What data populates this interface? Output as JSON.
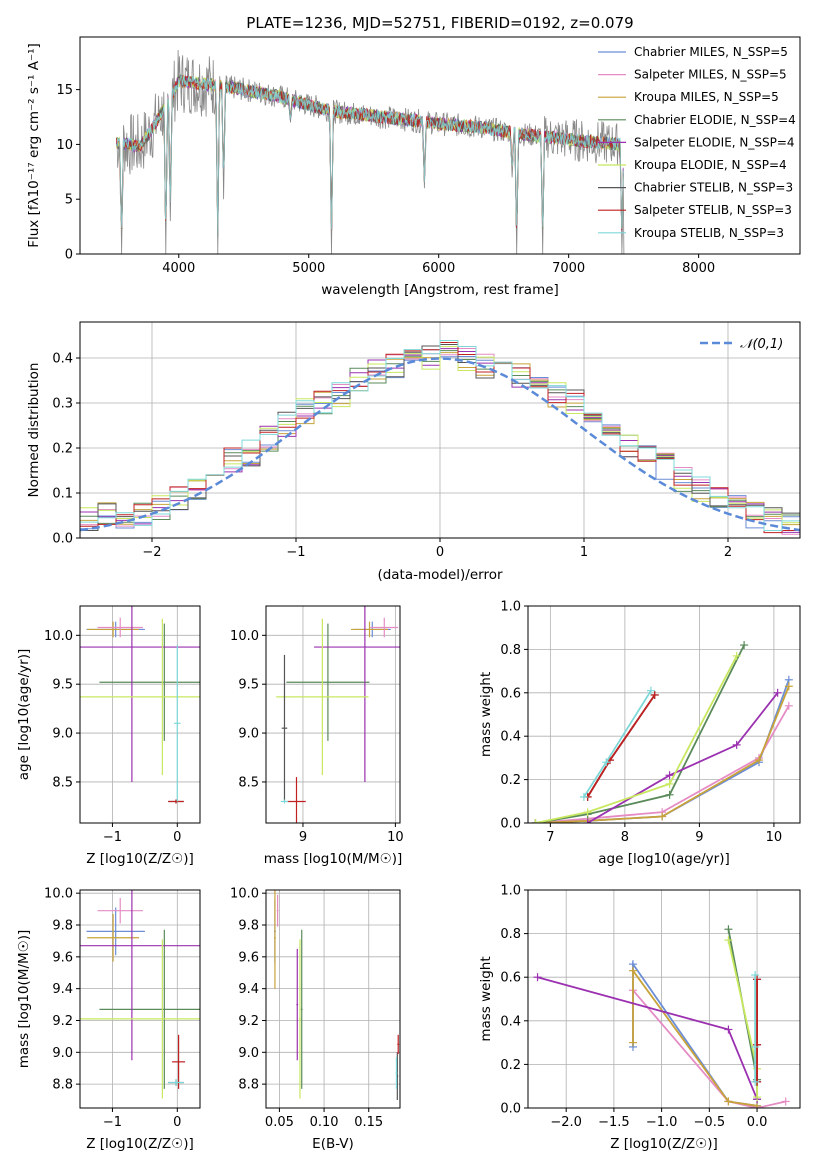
{
  "chart_data": [
    {
      "type": "line",
      "title": "PLATE=1236, MJD=52751, FIBERID=0192, z=0.079",
      "xlabel": "wavelength [Angstrom, rest frame]",
      "ylabel": "Flux [fλ10⁻¹⁷ erg cm⁻² s⁻¹ A⁻¹]",
      "xlim": [
        3240,
        8780
      ],
      "ylim": [
        0,
        19.8
      ],
      "xticks": [
        4000,
        5000,
        6000,
        7000,
        8000
      ],
      "yticks": [
        0,
        5,
        10,
        15
      ],
      "grid": false,
      "legend_position": "top-right",
      "series": [
        {
          "name": "Chabrier MILES, N_SSP=5",
          "color": "#6b8ed6"
        },
        {
          "name": "Salpeter MILES, N_SSP=5",
          "color": "#e58cc5"
        },
        {
          "name": "Kroupa MILES, N_SSP=5",
          "color": "#c8a23a"
        },
        {
          "name": "Chabrier ELODIE, N_SSP=4",
          "color": "#5a8a5a"
        },
        {
          "name": "Salpeter ELODIE, N_SSP=4",
          "color": "#9b30b0"
        },
        {
          "name": "Kroupa ELODIE, N_SSP=4",
          "color": "#c8e860"
        },
        {
          "name": "Chabrier STELIB, N_SSP=3",
          "color": "#555555"
        },
        {
          "name": "Salpeter STELIB, N_SSP=3",
          "color": "#c02020"
        },
        {
          "name": "Kroupa STELIB, N_SSP=3",
          "color": "#7fd8d8"
        }
      ],
      "data_color": "#888888",
      "continuum_points": [
        [
          3520,
          10.2
        ],
        [
          3700,
          9.8
        ],
        [
          3800,
          11.5
        ],
        [
          3950,
          14.5
        ],
        [
          4000,
          15.8
        ],
        [
          4200,
          15.5
        ],
        [
          4400,
          15.2
        ],
        [
          4600,
          14.8
        ],
        [
          4800,
          14.3
        ],
        [
          5000,
          13.6
        ],
        [
          5200,
          13.0
        ],
        [
          5500,
          12.6
        ],
        [
          5800,
          12.2
        ],
        [
          6000,
          11.9
        ],
        [
          6300,
          11.6
        ],
        [
          6600,
          11.0
        ],
        [
          6900,
          10.6
        ],
        [
          7200,
          10.2
        ],
        [
          7420,
          10.0
        ]
      ],
      "absorption_lines": [
        [
          3560,
          0
        ],
        [
          3900,
          0
        ],
        [
          3935,
          3
        ],
        [
          4300,
          0
        ],
        [
          4345,
          5
        ],
        [
          4860,
          12
        ],
        [
          5175,
          0
        ],
        [
          5890,
          6
        ],
        [
          6565,
          7
        ],
        [
          6600,
          0
        ],
        [
          6800,
          0
        ],
        [
          7410,
          0
        ]
      ]
    },
    {
      "type": "line",
      "xlabel": "(data-model)/error",
      "ylabel": "Normed distribution",
      "xlim": [
        -2.5,
        2.5
      ],
      "ylim": [
        0,
        0.48
      ],
      "xticks": [
        -2,
        -1,
        0,
        1,
        2
      ],
      "yticks": [
        0.0,
        0.1,
        0.2,
        0.3,
        0.4
      ],
      "grid": true,
      "legend": [
        "𝒩(0,1)"
      ],
      "legend_position": "top-right",
      "reference_curve": "normal",
      "histogram_values": [
        0.04,
        0.05,
        0.04,
        0.05,
        0.07,
        0.09,
        0.11,
        0.14,
        0.17,
        0.19,
        0.22,
        0.25,
        0.28,
        0.3,
        0.32,
        0.35,
        0.37,
        0.38,
        0.39,
        0.4,
        0.41,
        0.4,
        0.38,
        0.37,
        0.36,
        0.34,
        0.32,
        0.3,
        0.27,
        0.24,
        0.21,
        0.19,
        0.16,
        0.13,
        0.11,
        0.09,
        0.07,
        0.05,
        0.04,
        0.03
      ]
    },
    {
      "type": "scatter",
      "xlabel": "Z [log10(Z/Z☉)]",
      "ylabel": "age [log10(age/yr)]",
      "xlim": [
        -1.5,
        0.35
      ],
      "ylim": [
        8.08,
        10.3
      ],
      "xticks": [
        -1,
        0
      ],
      "yticks": [
        8.5,
        9.0,
        9.5,
        10.0
      ],
      "grid": true,
      "points": [
        {
          "series": "Chabrier MILES",
          "x": -0.95,
          "y": 10.06,
          "xerr": 0.45,
          "yerr": 0.08
        },
        {
          "series": "Kroupa MILES",
          "x": -0.99,
          "y": 10.06,
          "xerr": 0.4,
          "yerr": 0.08
        },
        {
          "series": "Salpeter MILES",
          "x": -0.88,
          "y": 10.08,
          "xerr": 0.35,
          "yerr": 0.1
        },
        {
          "series": "Chabrier ELODIE",
          "x": -0.2,
          "y": 9.52,
          "xerr": 1.0,
          "yerr": 0.6
        },
        {
          "series": "Salpeter ELODIE",
          "x": -0.7,
          "y": 9.88,
          "xerr": 1.1,
          "yerr": 1.38
        },
        {
          "series": "Kroupa ELODIE",
          "x": -0.23,
          "y": 9.37,
          "xerr": 1.3,
          "yerr": 0.8
        },
        {
          "series": "Chabrier STELIB",
          "x": -0.02,
          "y": 8.3,
          "xerr": 0.12,
          "yerr": 0.02
        },
        {
          "series": "Salpeter STELIB",
          "x": -0.02,
          "y": 8.3,
          "xerr": 0.12,
          "yerr": 0.02
        },
        {
          "series": "Kroupa STELIB",
          "x": 0.0,
          "y": 9.1,
          "xerr": 0.05,
          "yerr": 0.8
        }
      ]
    },
    {
      "type": "scatter",
      "xlabel": "mass [log10(M/M☉)]",
      "ylabel": "",
      "xlim": [
        8.6,
        10.05
      ],
      "ylim": [
        8.08,
        10.3
      ],
      "xticks": [
        9,
        10
      ],
      "yticks": [
        8.5,
        9.0,
        9.5,
        10.0
      ],
      "grid": true,
      "points": [
        {
          "series": "Chabrier MILES",
          "x": 9.75,
          "y": 10.06,
          "xerr": 0.2,
          "yerr": 0.08
        },
        {
          "series": "Kroupa MILES",
          "x": 9.72,
          "y": 10.06,
          "xerr": 0.2,
          "yerr": 0.08
        },
        {
          "series": "Salpeter MILES",
          "x": 9.88,
          "y": 10.08,
          "xerr": 0.15,
          "yerr": 0.1
        },
        {
          "series": "Chabrier ELODIE",
          "x": 9.27,
          "y": 9.52,
          "xerr": 0.45,
          "yerr": 0.6
        },
        {
          "series": "Salpeter ELODIE",
          "x": 9.67,
          "y": 9.88,
          "xerr": 0.55,
          "yerr": 1.38
        },
        {
          "series": "Kroupa ELODIE",
          "x": 9.21,
          "y": 9.37,
          "xerr": 0.5,
          "yerr": 0.8
        },
        {
          "series": "Chabrier STELIB",
          "x": 8.8,
          "y": 9.05,
          "xerr": 0.03,
          "yerr": 0.75
        },
        {
          "series": "Salpeter STELIB",
          "x": 8.93,
          "y": 8.3,
          "xerr": 0.1,
          "yerr": 0.25
        },
        {
          "series": "Kroupa STELIB",
          "x": 8.8,
          "y": 8.3,
          "xerr": 0.04,
          "yerr": 0.02
        }
      ]
    },
    {
      "type": "line",
      "xlabel": "age [log10(age/yr)]",
      "ylabel": "mass weight",
      "xlim": [
        6.7,
        10.35
      ],
      "ylim": [
        0,
        1.0
      ],
      "xticks": [
        7,
        8,
        9,
        10
      ],
      "yticks": [
        0.0,
        0.2,
        0.4,
        0.6,
        0.8,
        1.0
      ],
      "grid": true,
      "series": [
        {
          "name": "Chabrier MILES",
          "x": [
            6.8,
            7.5,
            8.5,
            9.8,
            10.2
          ],
          "y": [
            0.0,
            0.01,
            0.03,
            0.28,
            0.66
          ]
        },
        {
          "name": "Salpeter MILES",
          "x": [
            6.8,
            7.5,
            8.5,
            9.8,
            10.2
          ],
          "y": [
            0.0,
            0.02,
            0.05,
            0.3,
            0.54
          ]
        },
        {
          "name": "Kroupa MILES",
          "x": [
            6.8,
            7.5,
            8.5,
            9.8,
            10.2
          ],
          "y": [
            0.0,
            0.01,
            0.03,
            0.29,
            0.63
          ]
        },
        {
          "name": "Chabrier ELODIE",
          "x": [
            6.8,
            7.5,
            8.6,
            9.6
          ],
          "y": [
            0.0,
            0.04,
            0.13,
            0.82
          ]
        },
        {
          "name": "Salpeter ELODIE",
          "x": [
            7.5,
            8.6,
            9.5,
            10.05
          ],
          "y": [
            0.0,
            0.22,
            0.36,
            0.6
          ]
        },
        {
          "name": "Kroupa ELODIE",
          "x": [
            6.8,
            7.5,
            8.6,
            9.5
          ],
          "y": [
            0.0,
            0.05,
            0.18,
            0.77
          ]
        },
        {
          "name": "Chabrier STELIB",
          "x": [
            7.5,
            7.8,
            8.4
          ],
          "y": [
            0.12,
            0.29,
            0.59
          ]
        },
        {
          "name": "Salpeter STELIB",
          "x": [
            7.5,
            7.8,
            8.4
          ],
          "y": [
            0.12,
            0.29,
            0.59
          ]
        },
        {
          "name": "Kroupa STELIB",
          "x": [
            7.45,
            7.75,
            8.35
          ],
          "y": [
            0.12,
            0.28,
            0.61
          ]
        }
      ]
    },
    {
      "type": "scatter",
      "xlabel": "Z [log10(Z/Z☉)]",
      "ylabel": "mass [log10(M/M☉)]",
      "xlim": [
        -1.5,
        0.35
      ],
      "ylim": [
        8.65,
        10.02
      ],
      "xticks": [
        -1,
        0
      ],
      "yticks": [
        8.8,
        9.0,
        9.2,
        9.4,
        9.6,
        9.8,
        10.0
      ],
      "grid": true,
      "points": [
        {
          "series": "Chabrier MILES",
          "x": -0.95,
          "y": 9.76,
          "xerr": 0.45,
          "yerr": 0.15
        },
        {
          "series": "Kroupa MILES",
          "x": -0.99,
          "y": 9.72,
          "xerr": 0.4,
          "yerr": 0.15
        },
        {
          "series": "Salpeter MILES",
          "x": -0.88,
          "y": 9.89,
          "xerr": 0.35,
          "yerr": 0.08
        },
        {
          "series": "Chabrier ELODIE",
          "x": -0.2,
          "y": 9.27,
          "xerr": 1.0,
          "yerr": 0.5
        },
        {
          "series": "Salpeter ELODIE",
          "x": -0.7,
          "y": 9.67,
          "xerr": 1.1,
          "yerr": 0.72
        },
        {
          "series": "Kroupa ELODIE",
          "x": -0.23,
          "y": 9.21,
          "xerr": 1.3,
          "yerr": 0.5
        },
        {
          "series": "Chabrier STELIB",
          "x": -0.02,
          "y": 8.81,
          "xerr": 0.12,
          "yerr": 0.02
        },
        {
          "series": "Salpeter STELIB",
          "x": 0.02,
          "y": 8.94,
          "xerr": 0.1,
          "yerr": 0.17
        },
        {
          "series": "Kroupa STELIB",
          "x": -0.02,
          "y": 8.81,
          "xerr": 0.12,
          "yerr": 0.02
        }
      ]
    },
    {
      "type": "scatter",
      "xlabel": "E(B-V)",
      "ylabel": "",
      "xlim": [
        0.035,
        0.185
      ],
      "ylim": [
        8.65,
        10.02
      ],
      "xticks": [
        0.05,
        0.1,
        0.15
      ],
      "yticks": [
        8.8,
        9.0,
        9.2,
        9.4,
        9.6,
        9.8,
        10.0
      ],
      "grid": true,
      "points": [
        {
          "series": "Chabrier MILES",
          "x": 0.045,
          "y": 9.76,
          "xerr": 0.001,
          "yerr": 0.2
        },
        {
          "series": "Kroupa MILES",
          "x": 0.045,
          "y": 9.72,
          "xerr": 0.001,
          "yerr": 0.32
        },
        {
          "series": "Salpeter MILES",
          "x": 0.048,
          "y": 9.89,
          "xerr": 0.001,
          "yerr": 0.1
        },
        {
          "series": "Chabrier ELODIE",
          "x": 0.075,
          "y": 9.27,
          "xerr": 0.001,
          "yerr": 0.5
        },
        {
          "series": "Salpeter ELODIE",
          "x": 0.07,
          "y": 9.3,
          "xerr": 0.001,
          "yerr": 0.35
        },
        {
          "series": "Kroupa ELODIE",
          "x": 0.073,
          "y": 9.21,
          "xerr": 0.001,
          "yerr": 0.5
        },
        {
          "series": "Chabrier STELIB",
          "x": 0.182,
          "y": 8.85,
          "xerr": 0.001,
          "yerr": 0.15
        },
        {
          "series": "Salpeter STELIB",
          "x": 0.183,
          "y": 9.05,
          "xerr": 0.001,
          "yerr": 0.06
        },
        {
          "series": "Kroupa STELIB",
          "x": 0.181,
          "y": 8.87,
          "xerr": 0.001,
          "yerr": 0.1
        }
      ]
    },
    {
      "type": "line",
      "xlabel": "Z [log10(Z/Z☉)]",
      "ylabel": "mass weight",
      "xlim": [
        -2.4,
        0.45
      ],
      "ylim": [
        0,
        1.0
      ],
      "xticks": [
        -2.0,
        -1.5,
        -1.0,
        -0.5,
        0.0
      ],
      "yticks": [
        0.0,
        0.2,
        0.4,
        0.6,
        0.8,
        1.0
      ],
      "grid": true,
      "series": [
        {
          "name": "Chabrier MILES",
          "x": [
            -1.3,
            -1.3,
            -0.3,
            0.0
          ],
          "y": [
            0.28,
            0.66,
            0.03,
            0.01
          ]
        },
        {
          "name": "Salpeter MILES",
          "x": [
            -1.3,
            -0.3,
            0.0,
            0.3
          ],
          "y": [
            0.54,
            0.03,
            0.0,
            0.03
          ]
        },
        {
          "name": "Kroupa MILES",
          "x": [
            -1.3,
            -1.3,
            -0.3,
            0.0
          ],
          "y": [
            0.3,
            0.63,
            0.03,
            0.01
          ]
        },
        {
          "name": "Chabrier ELODIE",
          "x": [
            -0.3,
            0.0,
            0.0
          ],
          "y": [
            0.82,
            0.13,
            0.04
          ]
        },
        {
          "name": "Salpeter ELODIE",
          "x": [
            -2.3,
            -0.3,
            0.0
          ],
          "y": [
            0.6,
            0.36,
            0.04
          ]
        },
        {
          "name": "Kroupa ELODIE",
          "x": [
            -0.3,
            0.0,
            0.0
          ],
          "y": [
            0.77,
            0.18,
            0.05
          ]
        },
        {
          "name": "Chabrier STELIB",
          "x": [
            0.0,
            0.0,
            0.0
          ],
          "y": [
            0.12,
            0.29,
            0.59
          ]
        },
        {
          "name": "Salpeter STELIB",
          "x": [
            0.0,
            0.0,
            0.0
          ],
          "y": [
            0.12,
            0.29,
            0.59
          ]
        },
        {
          "name": "Kroupa STELIB",
          "x": [
            -0.02,
            -0.02,
            -0.02
          ],
          "y": [
            0.12,
            0.28,
            0.61
          ]
        }
      ]
    }
  ]
}
